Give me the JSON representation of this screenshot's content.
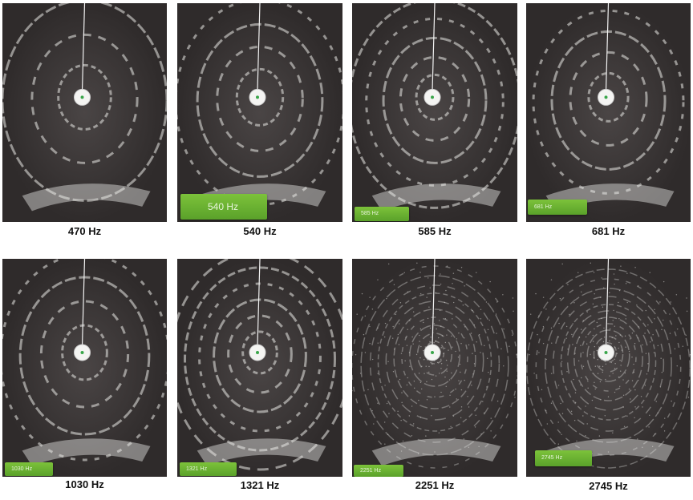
{
  "figure": {
    "panels": [
      {
        "caption": "470 Hz",
        "badge": ""
      },
      {
        "caption": "540 Hz",
        "badge": "540 Hz"
      },
      {
        "caption": "585 Hz",
        "badge": "585 Hz"
      },
      {
        "caption": "681 Hz",
        "badge": "681 Hz"
      },
      {
        "caption": "1030 Hz",
        "badge": "1030 Hz"
      },
      {
        "caption": "1321 Hz",
        "badge": "1321 Hz"
      },
      {
        "caption": "2251 Hz",
        "badge": "2251 Hz"
      },
      {
        "caption": "2745 Hz",
        "badge": "2745 Hz"
      }
    ]
  },
  "colors": {
    "plate": "#3a3535",
    "sand": "#e9e9e6",
    "badge": "#6bb232",
    "caption": "#111111"
  }
}
